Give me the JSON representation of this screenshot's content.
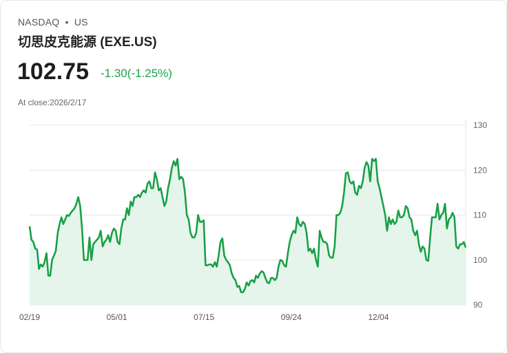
{
  "header": {
    "exchange": "NASDAQ",
    "separator": "•",
    "region": "US",
    "title": "切思皮克能源 (EXE.US)",
    "price": "102.75",
    "change": "-1.30(-1.25%)",
    "close_label": "At close:2026/2/17"
  },
  "colors": {
    "line": "#18a046",
    "fill": "#e5f5eb",
    "change": "#1aa34a"
  },
  "chart_data": {
    "type": "area",
    "title": "",
    "xlabel": "",
    "ylabel": "",
    "ylim": [
      90,
      130
    ],
    "yticks": [
      130,
      120,
      110,
      100,
      90
    ],
    "xtick_labels": [
      "02/19",
      "05/01",
      "07/15",
      "09/24",
      "12/04"
    ],
    "grid": true,
    "values": [
      107.5,
      104.5,
      104,
      102.5,
      102.3,
      98,
      99,
      98.5,
      99.5,
      101.5,
      96.5,
      96.5,
      100,
      101,
      102,
      106,
      108,
      109.5,
      108,
      109,
      110,
      109.8,
      110.5,
      111,
      111.5,
      112.5,
      114,
      112,
      107,
      100,
      100,
      100,
      105,
      100,
      103.5,
      104,
      104.5,
      105,
      106.5,
      103,
      104,
      104.5,
      105.5,
      104,
      106,
      107,
      106.5,
      104,
      103.5,
      107,
      109,
      109,
      111.5,
      110,
      113,
      112,
      114,
      114,
      114.5,
      114,
      115,
      115.5,
      115,
      117,
      117.5,
      116,
      116,
      119.5,
      118,
      115.5,
      116,
      114,
      112,
      113,
      116,
      118,
      120.5,
      122,
      121,
      122.5,
      118,
      118.5,
      118,
      115,
      110,
      109,
      106,
      105,
      105,
      106,
      110,
      108.5,
      108.5,
      108.8,
      98.8,
      98.8,
      99,
      99,
      98.5,
      99.5,
      98.5,
      101,
      104,
      104.8,
      101,
      100,
      99.5,
      98.8,
      97,
      96,
      95.5,
      94,
      94.2,
      92.8,
      92.8,
      93.5,
      95,
      94.3,
      95.3,
      95.5,
      95,
      96.5,
      96,
      97,
      97.5,
      97.2,
      96,
      95,
      94.8,
      96,
      96,
      95.5,
      96,
      98.5,
      100,
      99.8,
      98.8,
      98.5,
      101.5,
      104,
      105.5,
      106.5,
      106,
      109.5,
      108,
      107.5,
      108.5,
      108,
      106,
      102,
      102.5,
      101.5,
      102.5,
      100,
      98.5,
      106.5,
      105,
      104,
      104,
      103.5,
      101,
      100.5,
      100.5,
      103,
      110,
      110,
      110.5,
      112,
      115,
      119.3,
      119.5,
      117.5,
      117,
      117.5,
      115,
      114.5,
      116.5,
      116,
      117.5,
      120.5,
      121.8,
      121,
      117.5,
      122.5,
      122,
      122.5,
      117.5,
      116,
      114,
      112,
      110,
      106.5,
      109.5,
      108,
      109,
      108,
      108.5,
      111,
      109.5,
      109.5,
      110,
      112,
      111.5,
      109.5,
      109,
      106.5,
      105.5,
      106.5,
      103.5,
      101.8,
      103,
      102.5,
      100,
      99.8,
      105,
      109.5,
      109.5,
      109.5,
      112.5,
      109,
      110,
      110.5,
      112.5,
      107,
      109,
      109.5,
      110.5,
      109.5,
      103,
      102.5,
      103.5,
      103.5,
      104,
      102.75
    ]
  }
}
